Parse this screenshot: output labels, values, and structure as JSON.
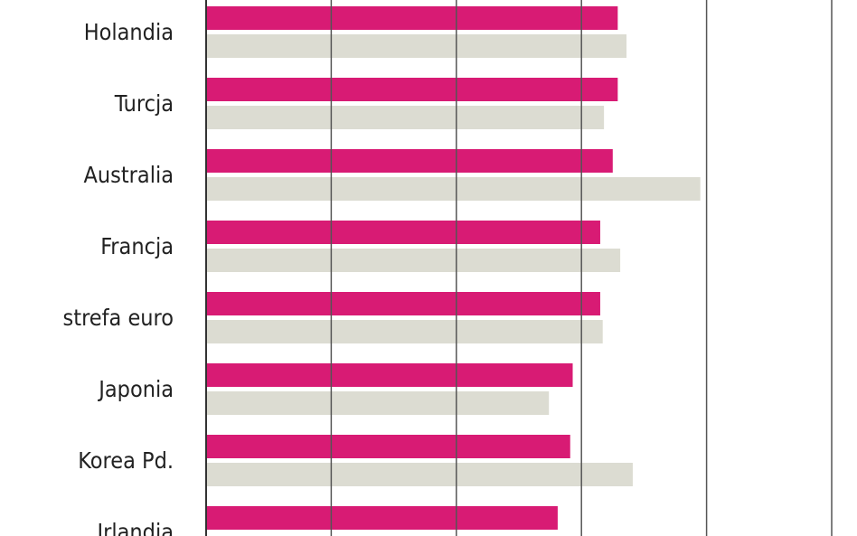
{
  "chart_data": {
    "type": "barh",
    "categories": [
      "Holandia",
      "Turcja",
      "Australia",
      "Francja",
      "strefa euro",
      "Japonia",
      "Korea Pd.",
      "Irlandia"
    ],
    "series": [
      {
        "color": "#d81b74",
        "values": [
          3.29,
          3.29,
          3.25,
          3.15,
          3.15,
          2.93,
          2.91,
          2.81
        ]
      },
      {
        "color": "#dcdcd2",
        "values": [
          3.36,
          3.18,
          3.95,
          3.31,
          3.17,
          2.74,
          3.41,
          null
        ]
      }
    ],
    "xlim": [
      0,
      5
    ],
    "xticks": [
      0,
      1,
      2,
      3,
      4,
      5
    ],
    "grid": true
  }
}
